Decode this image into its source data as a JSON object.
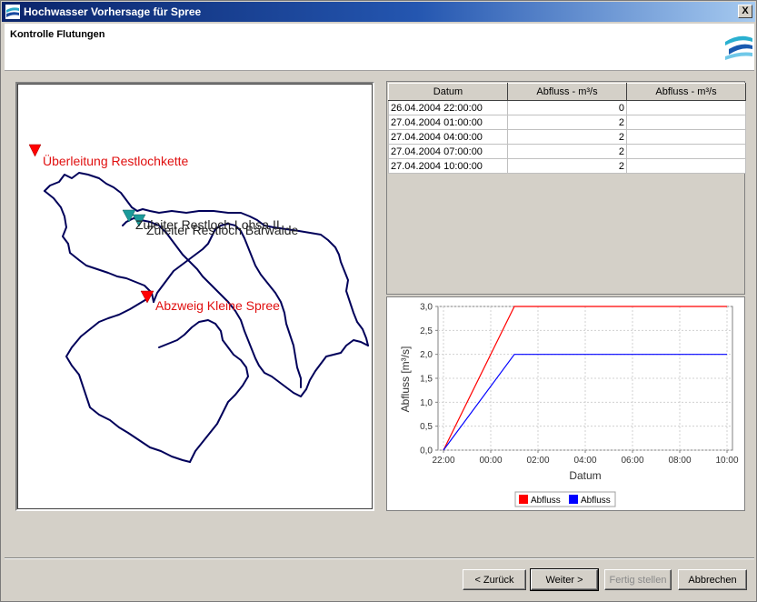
{
  "window": {
    "title": "Hochwasser Vorhersage für Spree",
    "close_label": "X"
  },
  "header": {
    "heading": "Kontrolle Flutungen"
  },
  "map": {
    "labels": {
      "ueberleitung": "Überleitung Restlochkette",
      "lohsa": "Zuleiter Restloch Lohsa II",
      "baerwalde": "Zuleiter Restloch Bärwalde",
      "abzweig": "Abzweig Kleine Spree"
    },
    "colors": {
      "river": "#00005a",
      "red_marker": "#ff0000",
      "teal_marker": "#1a9a9a",
      "label_red": "#e01010",
      "label_dark": "#222222"
    }
  },
  "table": {
    "headers": [
      "Datum",
      "Abfluss - m³/s",
      "Abfluss - m³/s"
    ],
    "rows": [
      [
        "26.04.2004 22:00:00",
        "0",
        ""
      ],
      [
        "27.04.2004 01:00:00",
        "2",
        ""
      ],
      [
        "27.04.2004 04:00:00",
        "2",
        ""
      ],
      [
        "27.04.2004 07:00:00",
        "2",
        ""
      ],
      [
        "27.04.2004 10:00:00",
        "2",
        ""
      ]
    ]
  },
  "chart_data": {
    "type": "line",
    "xlabel": "Datum",
    "ylabel": "Abfluss [m³/s]",
    "x_ticks": [
      "22:00",
      "00:00",
      "02:00",
      "04:00",
      "06:00",
      "08:00",
      "10:00"
    ],
    "xlim": [
      0,
      12
    ],
    "ylim": [
      0,
      3
    ],
    "y_ticks": [
      "0,0",
      "0,5",
      "1,0",
      "1,5",
      "2,0",
      "2,5",
      "3,0"
    ],
    "grid": true,
    "legend_position": "bottom",
    "series": [
      {
        "name": "Abfluss",
        "color": "#ff0000",
        "x": [
          0,
          3,
          12
        ],
        "y": [
          0,
          3,
          3
        ]
      },
      {
        "name": "Abfluss",
        "color": "#0000ff",
        "x": [
          0,
          3,
          12
        ],
        "y": [
          0,
          2,
          2
        ]
      }
    ]
  },
  "buttons": {
    "back": "< Zurück",
    "next": "Weiter >",
    "finish": "Fertig stellen",
    "cancel": "Abbrechen"
  }
}
